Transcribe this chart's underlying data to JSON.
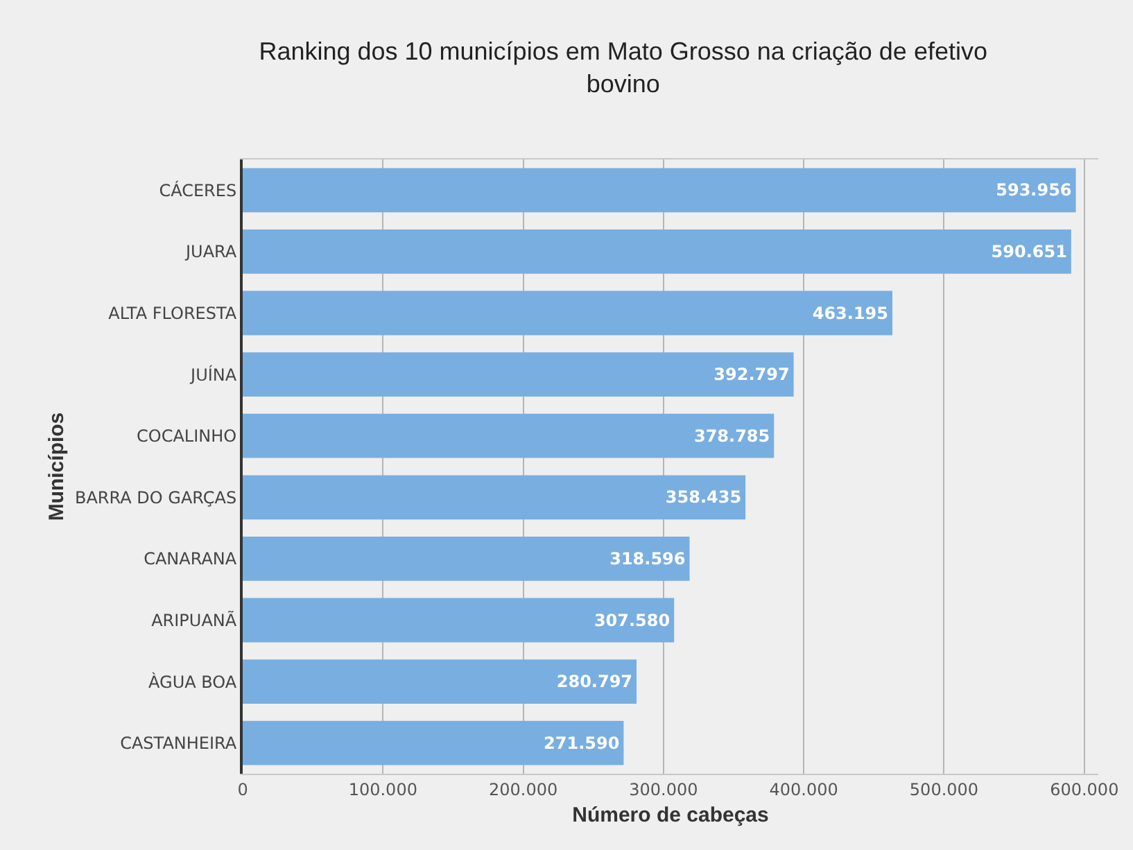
{
  "chart_data": {
    "type": "bar",
    "orientation": "horizontal",
    "title": "Ranking dos 10 municípios em Mato Grosso na criação de efetivo bovino",
    "xlabel": "Número de cabeças",
    "ylabel": "Municípios",
    "categories": [
      "CÁCERES",
      "JUARA",
      "ALTA FLORESTA",
      "JUÍNA",
      "COCALINHO",
      "BARRA DO GARÇAS",
      "CANARANA",
      "ARIPUANÃ",
      "ÀGUA BOA",
      "CASTANHEIRA"
    ],
    "values": [
      593956,
      590651,
      463195,
      392797,
      378785,
      358435,
      318596,
      307580,
      280797,
      271590
    ],
    "value_labels": [
      "593.956",
      "590.651",
      "463.195",
      "392.797",
      "378.785",
      "358.435",
      "318.596",
      "307.580",
      "280.797",
      "271.590"
    ],
    "color": "#79aee0",
    "xlim": [
      0,
      610000
    ],
    "xticks": [
      0,
      {
        "value": 100000,
        "label": "100.000"
      },
      {
        "value": 200000,
        "label": "200.000"
      },
      {
        "value": 300000,
        "label": "300.000"
      },
      {
        "value": 400000,
        "label": "400.000"
      },
      {
        "value": 500000,
        "label": "500.000"
      },
      {
        "value": 600000,
        "label": "600.000"
      }
    ],
    "grid": "x",
    "legend": false
  }
}
